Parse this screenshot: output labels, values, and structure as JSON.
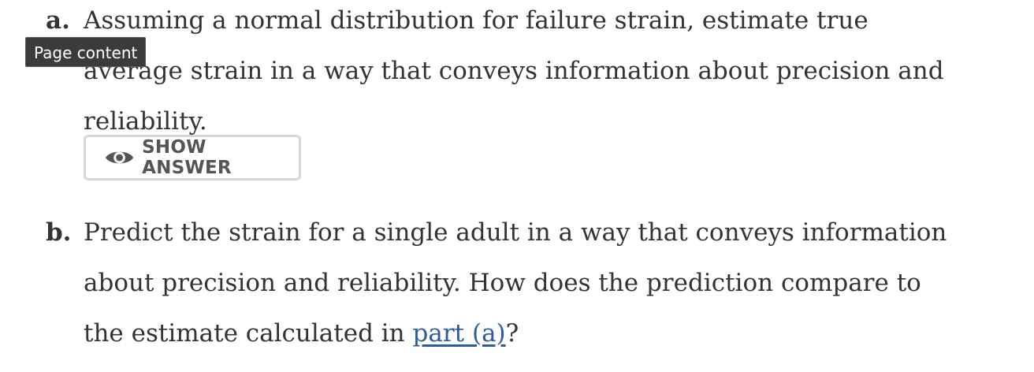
{
  "tooltip": {
    "text": "Page content"
  },
  "items": [
    {
      "marker": "a.",
      "text": "Assuming a normal distribution for failure strain, estimate true average strain in a way that conveys information about precision and reliability."
    },
    {
      "marker": "b.",
      "text_before": "Predict the strain for a single adult in a way that conveys information about precision and reliability. How does the prediction compare to the estimate calculated in ",
      "link": "part (a)",
      "text_after": "?"
    }
  ],
  "show_answer": {
    "label": "SHOW ANSWER",
    "icon": "eye-icon"
  },
  "colors": {
    "text": "#333333",
    "link": "#2b5c9c",
    "button_border": "#d6d6d6",
    "tooltip_bg": "#3b3b3b"
  }
}
